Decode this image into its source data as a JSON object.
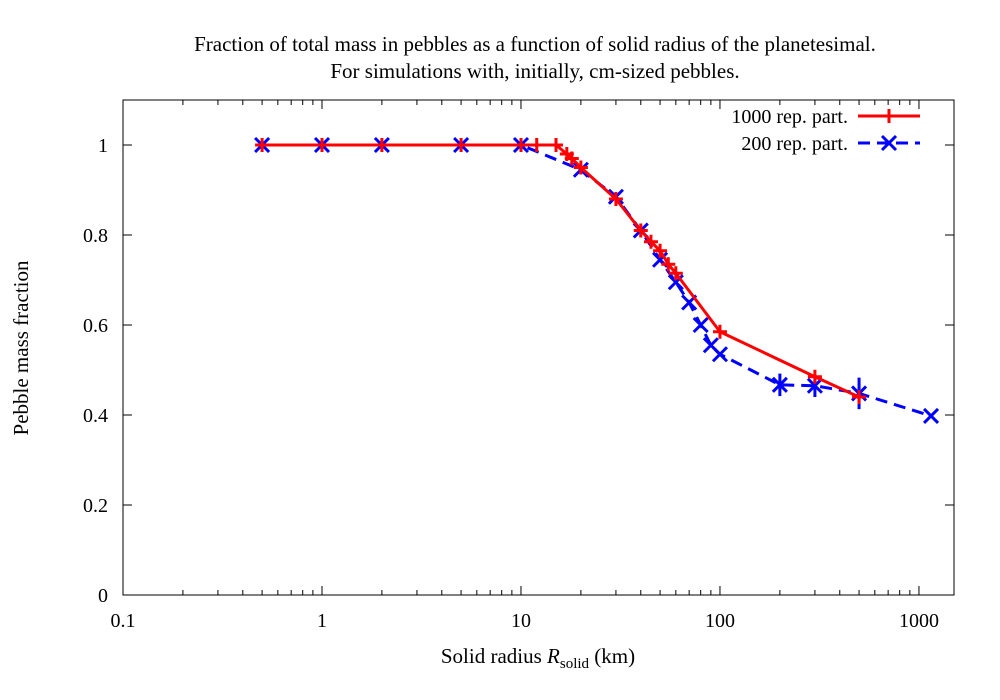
{
  "chart_data": {
    "type": "line",
    "title": "Fraction of total mass in pebbles as a function of solid radius of the planetesimal.",
    "subtitle": "For simulations with, initially, cm-sized pebbles.",
    "xlabel_main": "Solid radius ",
    "xlabel_italic": "R",
    "xlabel_sub": "solid",
    "xlabel_unit": " (km)",
    "ylabel": "Pebble mass fraction",
    "xscale": "log",
    "xlim": [
      0.1,
      1500
    ],
    "ylim": [
      0,
      1.1
    ],
    "x_ticks": [
      0.1,
      1,
      10,
      100,
      1000
    ],
    "x_tick_labels": [
      "0.1",
      "1",
      "10",
      "100",
      "1000"
    ],
    "y_ticks": [
      0,
      0.2,
      0.4,
      0.6,
      0.8,
      1
    ],
    "y_tick_labels": [
      "0",
      "0.2",
      "0.4",
      "0.6",
      "0.8",
      "1"
    ],
    "grid": false,
    "legend_position": "top-right",
    "series": [
      {
        "name": "1000 rep. part.",
        "color": "#ff0000",
        "line_style": "solid",
        "marker": "plus",
        "points": [
          {
            "x": 0.5,
            "y": 1.0
          },
          {
            "x": 1,
            "y": 1.0
          },
          {
            "x": 2,
            "y": 1.0
          },
          {
            "x": 5,
            "y": 1.0
          },
          {
            "x": 10,
            "y": 1.0
          },
          {
            "x": 12,
            "y": 1.0
          },
          {
            "x": 15,
            "y": 1.0
          },
          {
            "x": 17,
            "y": 0.98
          },
          {
            "x": 18,
            "y": 0.97
          },
          {
            "x": 20,
            "y": 0.95
          },
          {
            "x": 30,
            "y": 0.88
          },
          {
            "x": 40,
            "y": 0.81
          },
          {
            "x": 45,
            "y": 0.785
          },
          {
            "x": 50,
            "y": 0.765
          },
          {
            "x": 55,
            "y": 0.735
          },
          {
            "x": 60,
            "y": 0.715
          },
          {
            "x": 100,
            "y": 0.585
          },
          {
            "x": 300,
            "y": 0.485
          },
          {
            "x": 500,
            "y": 0.44
          }
        ]
      },
      {
        "name": "200 rep. part.",
        "color": "#0000ff",
        "line_style": "dashed",
        "marker": "cross",
        "points": [
          {
            "x": 0.5,
            "y": 1.0
          },
          {
            "x": 1,
            "y": 1.0
          },
          {
            "x": 2,
            "y": 1.0
          },
          {
            "x": 5,
            "y": 1.0
          },
          {
            "x": 10,
            "y": 1.0
          },
          {
            "x": 20,
            "y": 0.945
          },
          {
            "x": 30,
            "y": 0.885
          },
          {
            "x": 40,
            "y": 0.81
          },
          {
            "x": 50,
            "y": 0.745
          },
          {
            "x": 60,
            "y": 0.695
          },
          {
            "x": 70,
            "y": 0.65
          },
          {
            "x": 80,
            "y": 0.6
          },
          {
            "x": 90,
            "y": 0.555
          },
          {
            "x": 100,
            "y": 0.535
          },
          {
            "x": 200,
            "y": 0.467,
            "err": 0.025
          },
          {
            "x": 300,
            "y": 0.465,
            "err": 0.025
          },
          {
            "x": 500,
            "y": 0.448,
            "err": 0.035
          },
          {
            "x": 1150,
            "y": 0.398
          }
        ]
      }
    ]
  }
}
